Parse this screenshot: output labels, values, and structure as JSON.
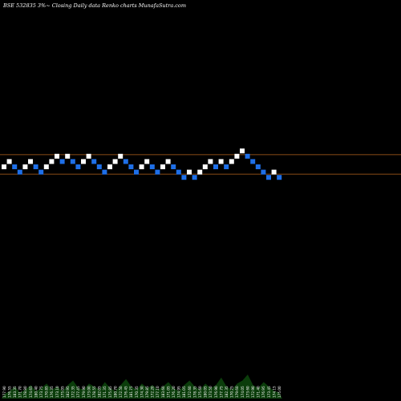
{
  "title": "BSE 532835 3%~  Closing Daily data  Renko  charts MunafaSutra.com",
  "colors": {
    "background": "#000000",
    "up_brick": "#ffffff",
    "down_brick": "#1e6fe8",
    "reference_line": "#b5651d",
    "volume_fill": "#0b3d0b",
    "text": "#ffffff"
  },
  "chart_data": {
    "type": "renko",
    "grid": false,
    "title": "BSE 532835 3%~  Closing Daily data  Renko  charts MunafaSutra.com",
    "reference_levels": [
      2,
      -1
    ],
    "bricks": [
      {
        "dir": "up",
        "level": 0
      },
      {
        "dir": "up",
        "level": 1
      },
      {
        "dir": "down",
        "level": 0
      },
      {
        "dir": "down",
        "level": -1
      },
      {
        "dir": "up",
        "level": 0
      },
      {
        "dir": "up",
        "level": 1
      },
      {
        "dir": "down",
        "level": 0
      },
      {
        "dir": "down",
        "level": -1
      },
      {
        "dir": "up",
        "level": 0
      },
      {
        "dir": "up",
        "level": 1
      },
      {
        "dir": "up",
        "level": 2
      },
      {
        "dir": "down",
        "level": 1
      },
      {
        "dir": "up",
        "level": 2
      },
      {
        "dir": "down",
        "level": 1
      },
      {
        "dir": "down",
        "level": 0
      },
      {
        "dir": "up",
        "level": 1
      },
      {
        "dir": "up",
        "level": 2
      },
      {
        "dir": "down",
        "level": 1
      },
      {
        "dir": "down",
        "level": 0
      },
      {
        "dir": "down",
        "level": -1
      },
      {
        "dir": "up",
        "level": 0
      },
      {
        "dir": "up",
        "level": 1
      },
      {
        "dir": "up",
        "level": 2
      },
      {
        "dir": "down",
        "level": 1
      },
      {
        "dir": "down",
        "level": 0
      },
      {
        "dir": "down",
        "level": -1
      },
      {
        "dir": "up",
        "level": 0
      },
      {
        "dir": "up",
        "level": 1
      },
      {
        "dir": "down",
        "level": 0
      },
      {
        "dir": "down",
        "level": -1
      },
      {
        "dir": "up",
        "level": 0
      },
      {
        "dir": "up",
        "level": 1
      },
      {
        "dir": "down",
        "level": 0
      },
      {
        "dir": "down",
        "level": -1
      },
      {
        "dir": "down",
        "level": -2
      },
      {
        "dir": "up",
        "level": -1
      },
      {
        "dir": "down",
        "level": -2
      },
      {
        "dir": "up",
        "level": -1
      },
      {
        "dir": "up",
        "level": 0
      },
      {
        "dir": "up",
        "level": 1
      },
      {
        "dir": "down",
        "level": 0
      },
      {
        "dir": "up",
        "level": 1
      },
      {
        "dir": "down",
        "level": 0
      },
      {
        "dir": "up",
        "level": 1
      },
      {
        "dir": "up",
        "level": 2
      },
      {
        "dir": "up",
        "level": 3
      },
      {
        "dir": "down",
        "level": 2
      },
      {
        "dir": "down",
        "level": 1
      },
      {
        "dir": "down",
        "level": 0
      },
      {
        "dir": "down",
        "level": -1
      },
      {
        "dir": "down",
        "level": -2
      },
      {
        "dir": "up",
        "level": -1
      },
      {
        "dir": "down",
        "level": -2
      }
    ],
    "volume": [
      3,
      5,
      8,
      4,
      6,
      9,
      5,
      7,
      10,
      6,
      8,
      5,
      9,
      12,
      7,
      6,
      10,
      8,
      6,
      11,
      7,
      5,
      9,
      13,
      8,
      6,
      10,
      7,
      9,
      6,
      8,
      11,
      7,
      5,
      9,
      12,
      8,
      6,
      10,
      7,
      9,
      14,
      8,
      6,
      10,
      12,
      16,
      9,
      7,
      11,
      8,
      5,
      4
    ],
    "tick_labels": [
      "177.90",
      "176.55",
      "183.35",
      "171.70",
      "178.80",
      "174.65",
      "180.40",
      "173.75",
      "170.85",
      "176.35",
      "173.10",
      "175.05",
      "182.95",
      "172.35",
      "177.45",
      "179.90",
      "173.00",
      "178.55",
      "182.05",
      "171.35",
      "175.85",
      "180.70",
      "172.50",
      "176.45",
      "181.75",
      "170.35",
      "174.30",
      "179.85",
      "172.20",
      "177.10",
      "183.60",
      "171.05",
      "176.20",
      "174.95",
      "181.05",
      "172.60",
      "178.35",
      "175.60",
      "180.05",
      "173.50",
      "176.90",
      "177.75",
      "182.35",
      "170.25",
      "179.60",
      "174.05",
      "173.60",
      "172.90",
      "171.40",
      "176.95",
      "173.45",
      "174.15",
      "175.00"
    ]
  }
}
